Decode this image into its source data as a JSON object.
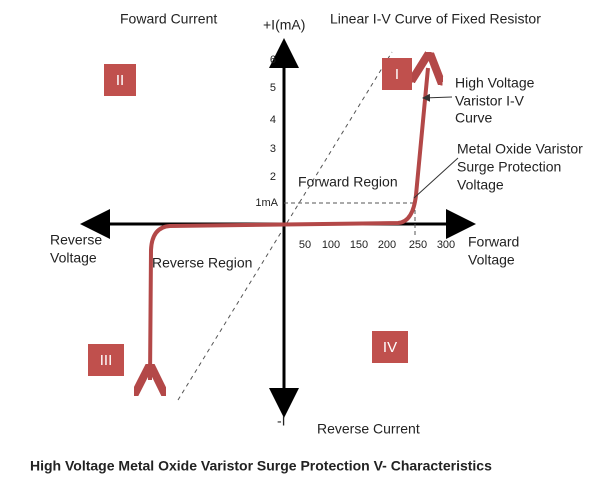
{
  "header": {
    "y_axis_label": "+I(mA)",
    "top_left": "Foward Current",
    "resistor_label": "Linear I-V Curve of Fixed Resistor"
  },
  "quadrants": {
    "q1": "I",
    "q2": "II",
    "q3": "III",
    "q4": "IV"
  },
  "y_ticks": [
    "6",
    "5",
    "4",
    "3",
    "2",
    "1mA"
  ],
  "x_ticks": [
    "50",
    "100",
    "150",
    "200",
    "250",
    "300"
  ],
  "labels": {
    "varistor_curve": [
      "High Voltage",
      "Varistor I-V",
      "Curve"
    ],
    "surge_voltage": [
      "Metal Oxide Varistor",
      "Surge Protection",
      "Voltage"
    ],
    "forward_region": "Forward Region",
    "reverse_region": "Reverse Region",
    "reverse_voltage": [
      "Reverse",
      "Voltage"
    ],
    "forward_voltage": [
      "Forward",
      "Voltage"
    ],
    "neg_i": "-I",
    "reverse_current": "Reverse Current"
  },
  "caption": "High Voltage Metal Oxide Varistor Surge Protection V- Characteristics"
}
